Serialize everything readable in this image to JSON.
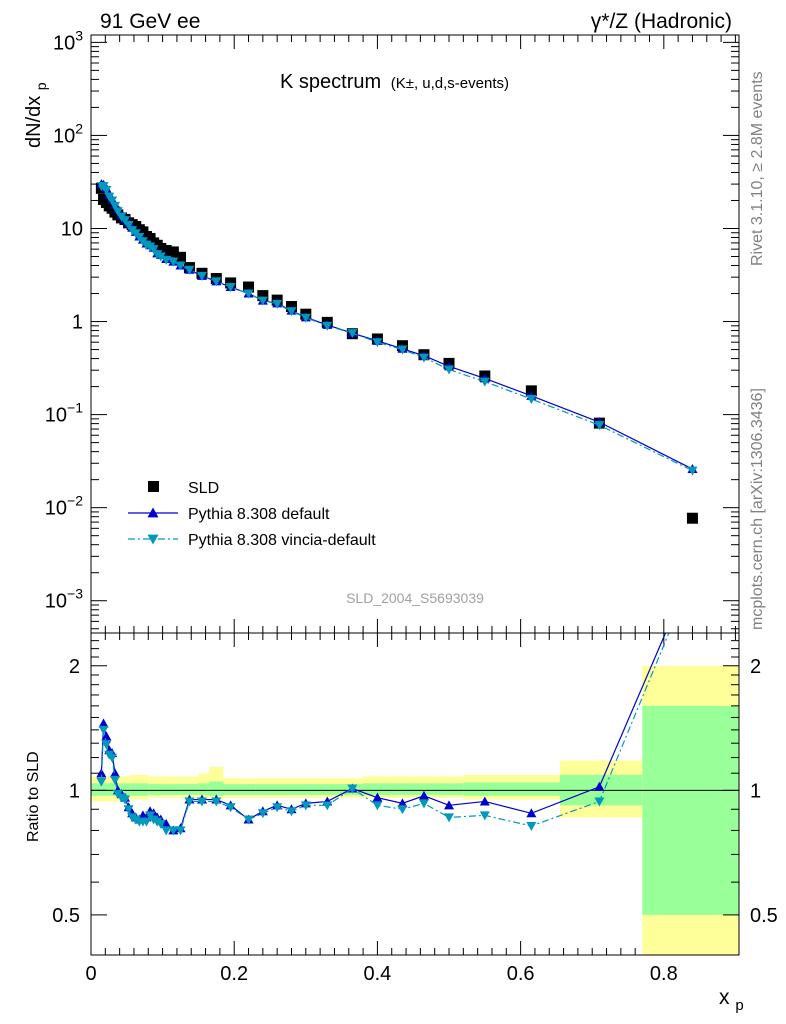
{
  "header": {
    "left": "91 GeV ee",
    "right": "γ*/Z (Hadronic)"
  },
  "side_text": {
    "rivet": "Rivet 3.1.10, ≥ 2.8M events",
    "mcplots": "mcplots.cern.ch [arXiv:1306.3436]"
  },
  "chart_data": {
    "type": "line",
    "title": "K spectrum",
    "title_sub": "(K±, u,d,s-events)",
    "analysis_id": "SLD_2004_S5693039",
    "xlabel": "x",
    "xlabel_sub": "p",
    "ylabel": "dN/dx",
    "ylabel_sub": "p",
    "xlim": [
      0,
      0.905
    ],
    "ylim": [
      0.00045,
      1200
    ],
    "yscale": "log",
    "xticks": [
      "0",
      "0.2",
      "0.4",
      "0.6",
      "0.8"
    ],
    "yticks": [
      "10^-3",
      "10^-2",
      "10^-1",
      "1",
      "10",
      "10^2",
      "10^3"
    ],
    "legend_position": "lower-left",
    "legend": [
      "SLD",
      "Pythia 8.308 default",
      "Pythia 8.308 vincia-default"
    ],
    "series": [
      {
        "name": "SLD",
        "color": "#000000",
        "marker": "square",
        "x": [
          0.0145,
          0.0175,
          0.0215,
          0.0255,
          0.0295,
          0.0335,
          0.0375,
          0.0425,
          0.0475,
          0.0525,
          0.0575,
          0.0625,
          0.0675,
          0.0725,
          0.0775,
          0.0825,
          0.0875,
          0.0925,
          0.0975,
          0.105,
          0.115,
          0.125,
          0.1375,
          0.155,
          0.175,
          0.195,
          0.22,
          0.24,
          0.26,
          0.28,
          0.3,
          0.33,
          0.365,
          0.4,
          0.435,
          0.465,
          0.5,
          0.55,
          0.615,
          0.71,
          0.84
        ],
        "y": [
          27,
          20.5,
          19,
          17.5,
          16.5,
          15,
          14,
          13,
          12.5,
          11.5,
          11,
          10.5,
          9.7,
          9.2,
          8.2,
          7.8,
          7,
          6.6,
          6.1,
          5.8,
          5.6,
          4.9,
          3.8,
          3.3,
          2.9,
          2.6,
          2.35,
          1.9,
          1.7,
          1.45,
          1.2,
          0.98,
          0.74,
          0.65,
          0.55,
          0.44,
          0.355,
          0.26,
          0.18,
          0.081,
          0.0077
        ]
      },
      {
        "name": "Pythia 8.308 default",
        "color": "#0000cc",
        "marker": "triangle-up",
        "style": "solid",
        "x": [
          0.0145,
          0.0175,
          0.0215,
          0.0255,
          0.0295,
          0.0335,
          0.0375,
          0.0425,
          0.0475,
          0.0525,
          0.0575,
          0.0625,
          0.0675,
          0.0725,
          0.0775,
          0.0825,
          0.0875,
          0.0925,
          0.0975,
          0.105,
          0.115,
          0.125,
          0.1375,
          0.155,
          0.175,
          0.195,
          0.22,
          0.24,
          0.26,
          0.28,
          0.3,
          0.33,
          0.365,
          0.4,
          0.435,
          0.465,
          0.5,
          0.55,
          0.615,
          0.71,
          0.84
        ],
        "y": [
          30,
          29.5,
          27,
          23,
          20.5,
          18,
          16,
          13.8,
          12.7,
          11.3,
          10.2,
          9.2,
          8.2,
          7.6,
          6.9,
          6.6,
          6.2,
          5.4,
          5.2,
          4.7,
          4.4,
          4.0,
          3.6,
          3.1,
          2.7,
          2.35,
          2.0,
          1.68,
          1.57,
          1.31,
          1.11,
          0.92,
          0.75,
          0.62,
          0.51,
          0.43,
          0.33,
          0.245,
          0.159,
          0.083,
          0.026
        ]
      },
      {
        "name": "Pythia 8.308 vincia-default",
        "color": "#0099bb",
        "marker": "triangle-down",
        "style": "dash-dot",
        "x": [
          0.0145,
          0.0175,
          0.0215,
          0.0255,
          0.0295,
          0.0335,
          0.0375,
          0.0425,
          0.0475,
          0.0525,
          0.0575,
          0.0625,
          0.0675,
          0.0725,
          0.0775,
          0.0825,
          0.0875,
          0.0925,
          0.0975,
          0.105,
          0.115,
          0.125,
          0.1375,
          0.155,
          0.175,
          0.195,
          0.22,
          0.24,
          0.26,
          0.28,
          0.3,
          0.33,
          0.365,
          0.4,
          0.435,
          0.465,
          0.5,
          0.55,
          0.615,
          0.71,
          0.84
        ],
        "y": [
          28.5,
          28.5,
          26,
          22,
          20,
          17.5,
          15.3,
          13.4,
          12.3,
          10.9,
          9.6,
          8.9,
          8.1,
          7.3,
          6.7,
          6.4,
          6.0,
          5.3,
          5.0,
          4.6,
          4.4,
          4.0,
          3.6,
          3.1,
          2.7,
          2.35,
          2.0,
          1.68,
          1.55,
          1.29,
          1.1,
          0.9,
          0.75,
          0.6,
          0.5,
          0.41,
          0.305,
          0.226,
          0.147,
          0.077,
          0.025
        ]
      }
    ],
    "ratio": {
      "ylabel": "Ratio to SLD",
      "ylim": [
        0.4,
        2.4
      ],
      "yticks": [
        "0.5",
        "1",
        "2"
      ],
      "reference": 1,
      "series": [
        {
          "name": "Pythia 8.308 default",
          "color": "#0000cc",
          "x": [
            0.0145,
            0.0175,
            0.0215,
            0.0255,
            0.0295,
            0.0335,
            0.0375,
            0.0425,
            0.0475,
            0.0525,
            0.0575,
            0.0625,
            0.0675,
            0.0725,
            0.0775,
            0.0825,
            0.0875,
            0.0925,
            0.0975,
            0.105,
            0.115,
            0.125,
            0.1375,
            0.155,
            0.175,
            0.195,
            0.22,
            0.24,
            0.26,
            0.28,
            0.3,
            0.33,
            0.365,
            0.4,
            0.435,
            0.465,
            0.5,
            0.55,
            0.615,
            0.71,
            0.84
          ],
          "y": [
            1.1,
            1.45,
            1.35,
            1.25,
            1.23,
            1.1,
            1.0,
            0.98,
            0.96,
            0.91,
            0.88,
            0.86,
            0.85,
            0.87,
            0.86,
            0.89,
            0.88,
            0.86,
            0.85,
            0.83,
            0.8,
            0.81,
            0.95,
            0.95,
            0.95,
            0.92,
            0.85,
            0.89,
            0.92,
            0.9,
            0.93,
            0.94,
            1.01,
            0.96,
            0.93,
            0.97,
            0.92,
            0.94,
            0.88,
            1.02,
            3.4
          ]
        },
        {
          "name": "Pythia 8.308 vincia-default",
          "color": "#0099bb",
          "x": [
            0.0145,
            0.0175,
            0.0215,
            0.0255,
            0.0295,
            0.0335,
            0.0375,
            0.0425,
            0.0475,
            0.0525,
            0.0575,
            0.0625,
            0.0675,
            0.0725,
            0.0775,
            0.0825,
            0.0875,
            0.0925,
            0.0975,
            0.105,
            0.115,
            0.125,
            0.1375,
            0.155,
            0.175,
            0.195,
            0.22,
            0.24,
            0.26,
            0.28,
            0.3,
            0.33,
            0.365,
            0.4,
            0.435,
            0.465,
            0.5,
            0.55,
            0.615,
            0.71,
            0.84
          ],
          "y": [
            1.05,
            1.4,
            1.29,
            1.22,
            1.2,
            1.06,
            0.98,
            0.96,
            0.95,
            0.9,
            0.86,
            0.85,
            0.84,
            0.84,
            0.84,
            0.87,
            0.85,
            0.84,
            0.83,
            0.8,
            0.8,
            0.8,
            0.94,
            0.94,
            0.94,
            0.91,
            0.85,
            0.88,
            0.91,
            0.89,
            0.92,
            0.92,
            1.01,
            0.92,
            0.9,
            0.93,
            0.86,
            0.87,
            0.82,
            0.94,
            3.3
          ]
        }
      ],
      "bands": [
        {
          "x0": 0.0,
          "x1": 0.055,
          "yellow": [
            0.94,
            1.08
          ],
          "green": [
            0.97,
            1.04
          ]
        },
        {
          "x0": 0.055,
          "x1": 0.08,
          "yellow": [
            0.95,
            1.09
          ],
          "green": [
            0.97,
            1.04
          ]
        },
        {
          "x0": 0.08,
          "x1": 0.15,
          "yellow": [
            0.96,
            1.08
          ],
          "green": [
            0.975,
            1.035
          ]
        },
        {
          "x0": 0.15,
          "x1": 0.165,
          "yellow": [
            0.96,
            1.1
          ],
          "green": [
            0.975,
            1.04
          ]
        },
        {
          "x0": 0.165,
          "x1": 0.185,
          "yellow": [
            0.95,
            1.14
          ],
          "green": [
            0.97,
            1.05
          ]
        },
        {
          "x0": 0.185,
          "x1": 0.23,
          "yellow": [
            0.96,
            1.07
          ],
          "green": [
            0.975,
            1.035
          ]
        },
        {
          "x0": 0.23,
          "x1": 0.38,
          "yellow": [
            0.96,
            1.07
          ],
          "green": [
            0.975,
            1.035
          ]
        },
        {
          "x0": 0.38,
          "x1": 0.52,
          "yellow": [
            0.96,
            1.08
          ],
          "green": [
            0.975,
            1.04
          ]
        },
        {
          "x0": 0.52,
          "x1": 0.655,
          "yellow": [
            0.95,
            1.09
          ],
          "green": [
            0.97,
            1.045
          ]
        },
        {
          "x0": 0.655,
          "x1": 0.77,
          "yellow": [
            0.86,
            1.18
          ],
          "green": [
            0.92,
            1.09
          ]
        },
        {
          "x0": 0.77,
          "x1": 0.905,
          "yellow": [
            0.3,
            2.0
          ],
          "green": [
            0.5,
            1.6
          ]
        }
      ]
    }
  },
  "colors": {
    "band_yellow": "#ffff99",
    "band_green": "#99ff99",
    "side_text": "#808080",
    "analysis_id": "#a0a0a0"
  }
}
